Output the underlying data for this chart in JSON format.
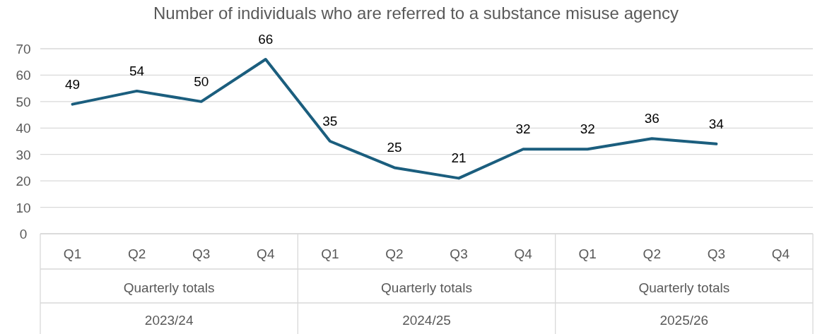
{
  "chart_data": {
    "type": "line",
    "title": "Number of individuals who are referred to a substance misuse agency",
    "categories": [
      "Q1",
      "Q2",
      "Q3",
      "Q4",
      "Q1",
      "Q2",
      "Q3",
      "Q4",
      "Q1",
      "Q2",
      "Q3",
      "Q4"
    ],
    "series": [
      {
        "color": "#1b5e7e",
        "values": [
          49,
          54,
          50,
          66,
          35,
          25,
          21,
          32,
          32,
          36,
          34,
          null
        ]
      }
    ],
    "annotations": [
      "Quarterly totals",
      "Quarterly totals",
      "Quarterly totals",
      "2023/24",
      "2024/25",
      "2025/26"
    ],
    "ylim": [
      0,
      70
    ],
    "yticks": [
      0,
      10,
      20,
      30,
      40,
      50,
      60,
      70
    ],
    "grid": "y",
    "data_labels": true,
    "marker": "none",
    "line_style": "solid"
  }
}
